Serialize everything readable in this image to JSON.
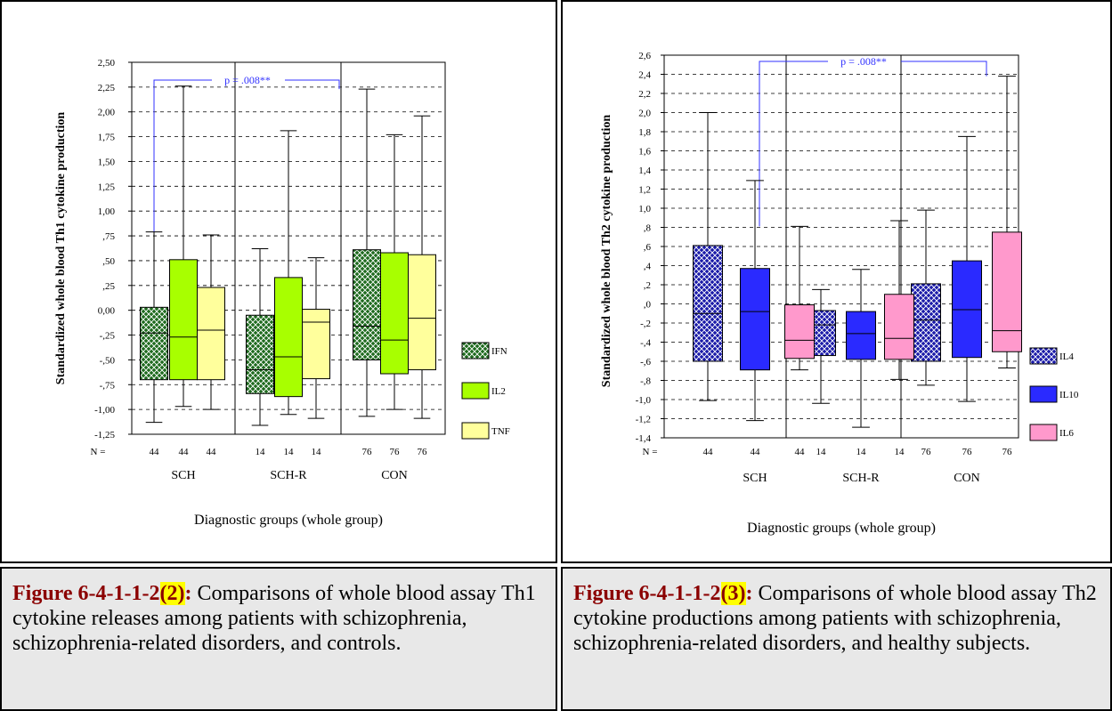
{
  "charts": [
    {
      "id": "th1",
      "ylabel": "Standardized whole blood Th1 cytokine production",
      "xlabel": "Diagnostic groups (whole group)",
      "n_label": "N =",
      "groups": [
        "SCH",
        "SCH-R",
        "CON"
      ],
      "n_values": [
        [
          "44",
          "44",
          "44"
        ],
        [
          "14",
          "14",
          "14"
        ],
        [
          "76",
          "76",
          "76"
        ]
      ],
      "ticks": [
        "2,50",
        "2,25",
        "2,00",
        "1,75",
        "1,50",
        "1,25",
        "1,00",
        ",75",
        ",50",
        ",25",
        "0,00",
        "-,25",
        "-,50",
        "-,75",
        "-1,00",
        "-1,25"
      ],
      "annotation": "p = .008**",
      "legend": [
        "IFN",
        "IL2",
        "TNF"
      ],
      "colors": [
        "#1e6a1e",
        "#a8ff00",
        "#ffff9c"
      ]
    },
    {
      "id": "th2",
      "ylabel": "Standardized whole blood Th2 cytokine production",
      "xlabel": "Diagnostic groups (whole group)",
      "n_label": "N =",
      "groups": [
        "SCH",
        "SCH-R",
        "CON"
      ],
      "n_values": [
        [
          "44",
          "44",
          "44"
        ],
        [
          "14",
          "14",
          "14"
        ],
        [
          "76",
          "76",
          "76"
        ]
      ],
      "ticks": [
        "2,6",
        "2,4",
        "2,2",
        "2,0",
        "1,8",
        "1,6",
        "1,4",
        "1,2",
        "1,0",
        ",8",
        ",6",
        ",4",
        ",2",
        ",0",
        "-,2",
        "-,4",
        "-,6",
        "-,8",
        "-1,0",
        "-1,2",
        "-1,4"
      ],
      "annotation": "p = .008**",
      "legend": [
        "IL4",
        "IL10",
        "IL6"
      ],
      "colors": [
        "#1a1aa8",
        "#2a2aff",
        "#ff99cc"
      ]
    }
  ],
  "chart_data": [
    {
      "type": "box",
      "ylabel": "Standardized whole blood Th1 cytokine production",
      "xlabel": "Diagnostic groups (whole group)",
      "ylim": [
        -1.25,
        2.5
      ],
      "grid": true,
      "legend_position": "right",
      "categories": [
        "SCH",
        "SCH-R",
        "CON"
      ],
      "series": [
        {
          "name": "IFN",
          "boxes": [
            {
              "min": -1.13,
              "q1": -0.7,
              "median": -0.23,
              "q3": 0.03,
              "max": 0.79
            },
            {
              "min": -1.16,
              "q1": -0.84,
              "median": -0.6,
              "q3": -0.05,
              "max": 0.62
            },
            {
              "min": -1.07,
              "q1": -0.5,
              "median": -0.16,
              "q3": 0.61,
              "max": 2.23
            }
          ]
        },
        {
          "name": "IL2",
          "boxes": [
            {
              "min": -0.97,
              "q1": -0.7,
              "median": -0.27,
              "q3": 0.51,
              "max": 2.26
            },
            {
              "min": -1.05,
              "q1": -0.87,
              "median": -0.47,
              "q3": 0.33,
              "max": 1.81
            },
            {
              "min": -1.0,
              "q1": -0.64,
              "median": -0.3,
              "q3": 0.58,
              "max": 1.77
            }
          ]
        },
        {
          "name": "TNF",
          "boxes": [
            {
              "min": -1.0,
              "q1": -0.7,
              "median": -0.2,
              "q3": 0.23,
              "max": 0.76
            },
            {
              "min": -1.09,
              "q1": -0.69,
              "median": -0.12,
              "q3": 0.01,
              "max": 0.53
            },
            {
              "min": -1.09,
              "q1": -0.6,
              "median": -0.08,
              "q3": 0.56,
              "max": 1.96
            }
          ]
        }
      ],
      "annotation": "p = .008**",
      "n": [
        44,
        14,
        76
      ]
    },
    {
      "type": "box",
      "ylabel": "Standardized whole blood Th2 cytokine production",
      "xlabel": "Diagnostic groups (whole group)",
      "ylim": [
        -1.4,
        2.6
      ],
      "grid": true,
      "legend_position": "right",
      "categories": [
        "SCH",
        "SCH-R",
        "CON"
      ],
      "series": [
        {
          "name": "IL4",
          "boxes": [
            {
              "min": -1.01,
              "q1": -0.6,
              "median": -0.1,
              "q3": 0.61,
              "max": 2.0
            },
            {
              "min": -1.04,
              "q1": -0.54,
              "median": -0.22,
              "q3": -0.07,
              "max": 0.15
            },
            {
              "min": -0.85,
              "q1": -0.6,
              "median": -0.17,
              "q3": 0.21,
              "max": 0.98
            }
          ]
        },
        {
          "name": "IL10",
          "boxes": [
            {
              "min": -1.22,
              "q1": -0.69,
              "median": -0.08,
              "q3": 0.37,
              "max": 1.29
            },
            {
              "min": -1.29,
              "q1": -0.58,
              "median": -0.31,
              "q3": -0.08,
              "max": 0.36
            },
            {
              "min": -1.02,
              "q1": -0.56,
              "median": -0.06,
              "q3": 0.45,
              "max": 1.75
            }
          ]
        },
        {
          "name": "IL6",
          "boxes": [
            {
              "min": -0.69,
              "q1": -0.57,
              "median": -0.38,
              "q3": -0.01,
              "max": 0.81
            },
            {
              "min": -0.79,
              "q1": -0.58,
              "median": -0.36,
              "q3": 0.1,
              "max": 0.87
            },
            {
              "min": -0.67,
              "q1": -0.5,
              "median": -0.28,
              "q3": 0.75,
              "max": 2.38
            }
          ]
        }
      ],
      "annotation": "p = .008**",
      "n": [
        44,
        14,
        76
      ]
    }
  ],
  "captions": [
    {
      "fig_label": "Figure 6-4-1-1-2",
      "fig_num": "(2)",
      "colon": ":",
      "text": " Comparisons of whole blood assay Th1 cytokine releases among patients with schizophrenia, schizophrenia-related disorders, and controls."
    },
    {
      "fig_label": "Figure 6-4-1-1-2",
      "fig_num": "(3)",
      "colon": ":",
      "text": " Comparisons of whole blood assay Th2 cytokine productions among patients with schizophrenia, schizophrenia-related disorders, and healthy subjects."
    }
  ]
}
